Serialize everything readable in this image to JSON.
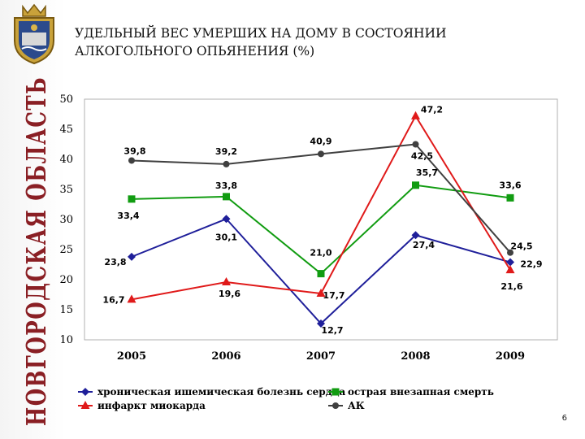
{
  "header": {
    "region_name": "НОВГОРОДСКАЯ ОБЛАСТЬ",
    "title_line1": "УДЕЛЬНЫЙ ВЕС УМЕРШИХ НА ДОМУ В СОСТОЯНИИ",
    "title_line2": "АЛКОГОЛЬНОГО ОПЬЯНЕНИЯ (%)"
  },
  "page_number": "6",
  "chart_data": {
    "type": "line",
    "title": "УДЕЛЬНЫЙ ВЕС УМЕРШИХ НА ДОМУ В СОСТОЯНИИ АЛКОГОЛЬНОГО ОПЬЯНЕНИЯ (%)",
    "xlabel": "",
    "ylabel": "",
    "categories": [
      "2005",
      "2006",
      "2007",
      "2008",
      "2009"
    ],
    "ylim": [
      10,
      50
    ],
    "yticks": [
      "10",
      "15",
      "20",
      "25",
      "30",
      "35",
      "40",
      "45",
      "50"
    ],
    "grid": false,
    "legend_position": "bottom",
    "series": [
      {
        "name": "хроническая ишемическая болезнь сердца",
        "color": "#1f1f9a",
        "marker": "diamond",
        "values": [
          23.8,
          30.1,
          12.7,
          27.4,
          22.9
        ],
        "labels": [
          "23,8",
          "30,1",
          "12,7",
          "27,4",
          "22,9"
        ]
      },
      {
        "name": "острая внезапная смерть",
        "color": "#119c11",
        "marker": "square",
        "values": [
          33.4,
          33.8,
          21.0,
          35.7,
          33.6
        ],
        "labels": [
          "33,4",
          "33,8",
          "21,0",
          "35,7",
          "33,6"
        ]
      },
      {
        "name": "инфаркт миокарда",
        "color": "#e01a1a",
        "marker": "triangle",
        "values": [
          16.7,
          19.6,
          17.7,
          47.2,
          21.6
        ],
        "labels": [
          "16,7",
          "19,6",
          "17,7",
          "47,2",
          "21,6"
        ]
      },
      {
        "name": "АК",
        "color": "#404040",
        "marker": "circle",
        "values": [
          39.8,
          39.2,
          40.9,
          42.5,
          24.5
        ],
        "labels": [
          "39,8",
          "39,2",
          "40,9",
          "42,5",
          "24,5"
        ]
      }
    ]
  }
}
